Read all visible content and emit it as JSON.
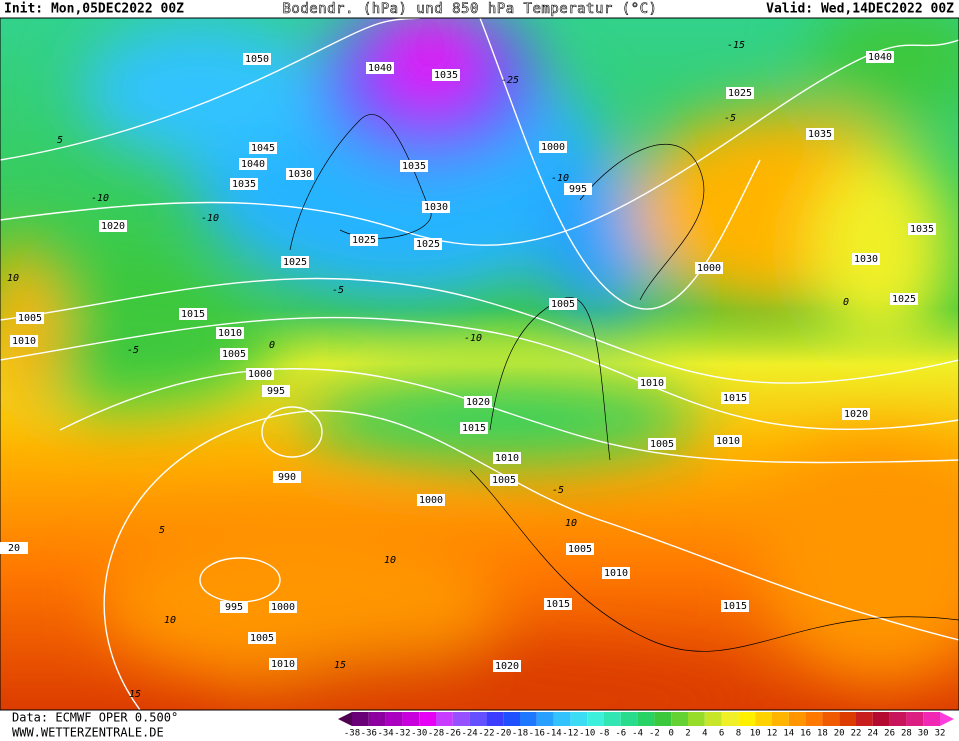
{
  "header": {
    "init": "Init: Mon,05DEC2022 00Z",
    "title": "Bodendr. (hPa) und 850 hPa Temperatur (°C)",
    "valid": "Valid: Wed,14DEC2022 00Z"
  },
  "footer": {
    "data": "Data: ECMWF OPER 0.500°",
    "site": "WWW.WETTERZENTRALE.DE"
  },
  "scale": {
    "values": [
      -38,
      -36,
      -34,
      -32,
      -30,
      -28,
      -26,
      -24,
      -22,
      -20,
      -18,
      -16,
      -14,
      -12,
      -10,
      -8,
      -6,
      -4,
      -2,
      0,
      2,
      4,
      6,
      8,
      10,
      12,
      14,
      16,
      18,
      20,
      22,
      24,
      26,
      28,
      30,
      32
    ],
    "colors": [
      "#500050",
      "#6a0078",
      "#8c00a0",
      "#aa00c0",
      "#c800dc",
      "#e600f5",
      "#c83cff",
      "#9650ff",
      "#6450ff",
      "#3c3cff",
      "#1e50ff",
      "#1e78ff",
      "#28a0ff",
      "#32c3ff",
      "#3cdcf5",
      "#3cf0dc",
      "#32e6b4",
      "#28dc8c",
      "#28d264",
      "#3cc83c",
      "#64d232",
      "#96dc28",
      "#c8e628",
      "#f0f028",
      "#fff000",
      "#ffd200",
      "#ffb400",
      "#ff9600",
      "#ff7800",
      "#f05a00",
      "#dc3c00",
      "#c81e1e",
      "#b40a32",
      "#c8145a",
      "#dc1e82",
      "#f028b4",
      "#ff3cdc"
    ]
  },
  "labels": {
    "pressure": [
      1050,
      1040,
      1035,
      1025,
      1040,
      1035,
      1000,
      995,
      1045,
      1040,
      1035,
      1030,
      1035,
      1030,
      1020,
      1025,
      1025,
      1025,
      1035,
      1030,
      1000,
      1005,
      1025,
      1015,
      1005,
      1010,
      1010,
      1005,
      1000,
      995,
      1010,
      1015,
      1020,
      1020,
      1015,
      1005,
      1010,
      990,
      1010,
      1005,
      1000,
      1005,
      1010,
      1015,
      1015,
      995,
      1000,
      1005,
      1010,
      1020,
      20
    ],
    "temperature": [
      -10,
      -10,
      -5,
      -10,
      0,
      -5,
      10,
      5,
      10,
      10,
      15,
      15,
      -5,
      10,
      -25,
      -15,
      -10,
      -5,
      0,
      5
    ]
  }
}
